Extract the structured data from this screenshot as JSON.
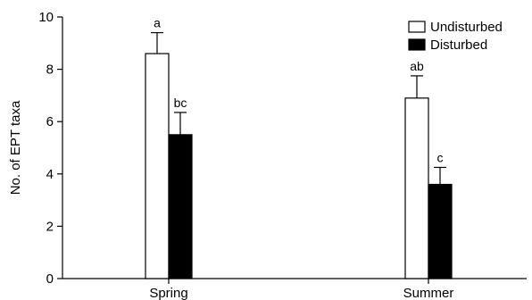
{
  "chart_data": {
    "type": "bar",
    "title": "",
    "xlabel": "",
    "ylabel": "No. of EPT taxa",
    "ylim": [
      0,
      10
    ],
    "yticks": [
      0,
      2,
      4,
      6,
      8,
      10
    ],
    "categories": [
      "Spring",
      "Summer"
    ],
    "series": [
      {
        "name": "Undisturbed",
        "color": "#ffffff",
        "values": [
          8.6,
          6.9
        ],
        "errors": [
          0.8,
          0.85
        ],
        "labels": [
          "a",
          "ab"
        ]
      },
      {
        "name": "Disturbed",
        "color": "#000000",
        "values": [
          5.5,
          3.6
        ],
        "errors": [
          0.85,
          0.65
        ],
        "labels": [
          "bc",
          "c"
        ]
      }
    ],
    "grid": false,
    "legend_position": "top-right"
  }
}
